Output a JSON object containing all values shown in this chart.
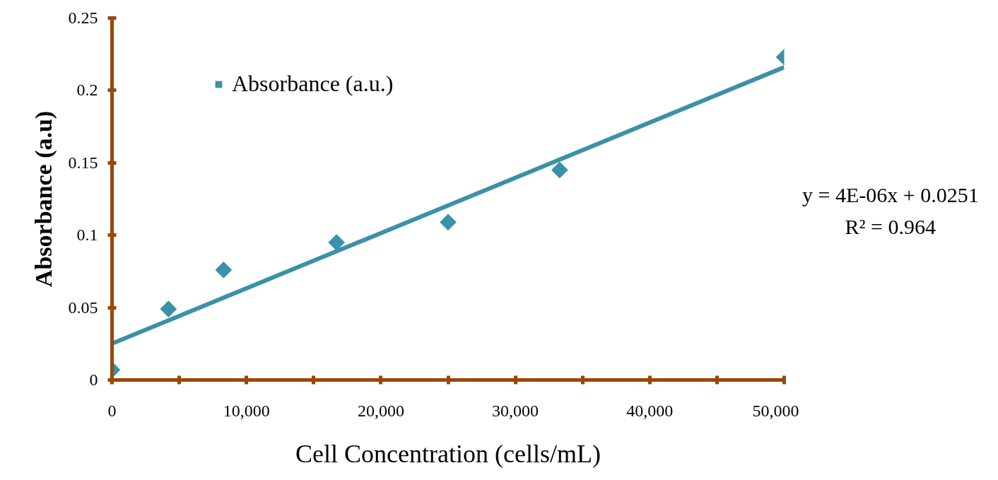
{
  "chart_data": {
    "type": "scatter",
    "xlabel": "Cell Concentration (cells/mL)",
    "ylabel": "Absorbance (a.u)",
    "series": [
      {
        "name": "Absorbance (a.u.)",
        "marker": "diamond",
        "color": "#3a91a8",
        "x": [
          0,
          4200,
          8300,
          16700,
          25000,
          33300,
          50000
        ],
        "values": [
          0.007,
          0.049,
          0.076,
          0.095,
          0.109,
          0.145,
          0.223
        ]
      },
      {
        "type": "line",
        "color": "#3a91a8",
        "x": [
          0,
          50000
        ],
        "values": [
          0.0251,
          0.216
        ]
      }
    ],
    "xlim": [
      0,
      50000
    ],
    "xticks": [
      {
        "value": 0,
        "label": "0"
      },
      {
        "value": 5000,
        "label": null
      },
      {
        "value": 10000,
        "label": "10,000"
      },
      {
        "value": 15000,
        "label": null
      },
      {
        "value": 20000,
        "label": "20,000"
      },
      {
        "value": 25000,
        "label": null
      },
      {
        "value": 30000,
        "label": "30,000"
      },
      {
        "value": 35000,
        "label": null
      },
      {
        "value": 40000,
        "label": "40,000"
      },
      {
        "value": 45000,
        "label": null
      },
      {
        "value": 50000,
        "label": "50,000"
      }
    ],
    "ylim": [
      0,
      0.25
    ],
    "yticks": [
      0,
      0.05,
      0.1,
      0.15,
      0.2,
      0.25
    ],
    "annotations": [
      "y = 4E-06x + 0.0251",
      "R² = 0.964"
    ],
    "grid": false,
    "legend": "top left"
  }
}
